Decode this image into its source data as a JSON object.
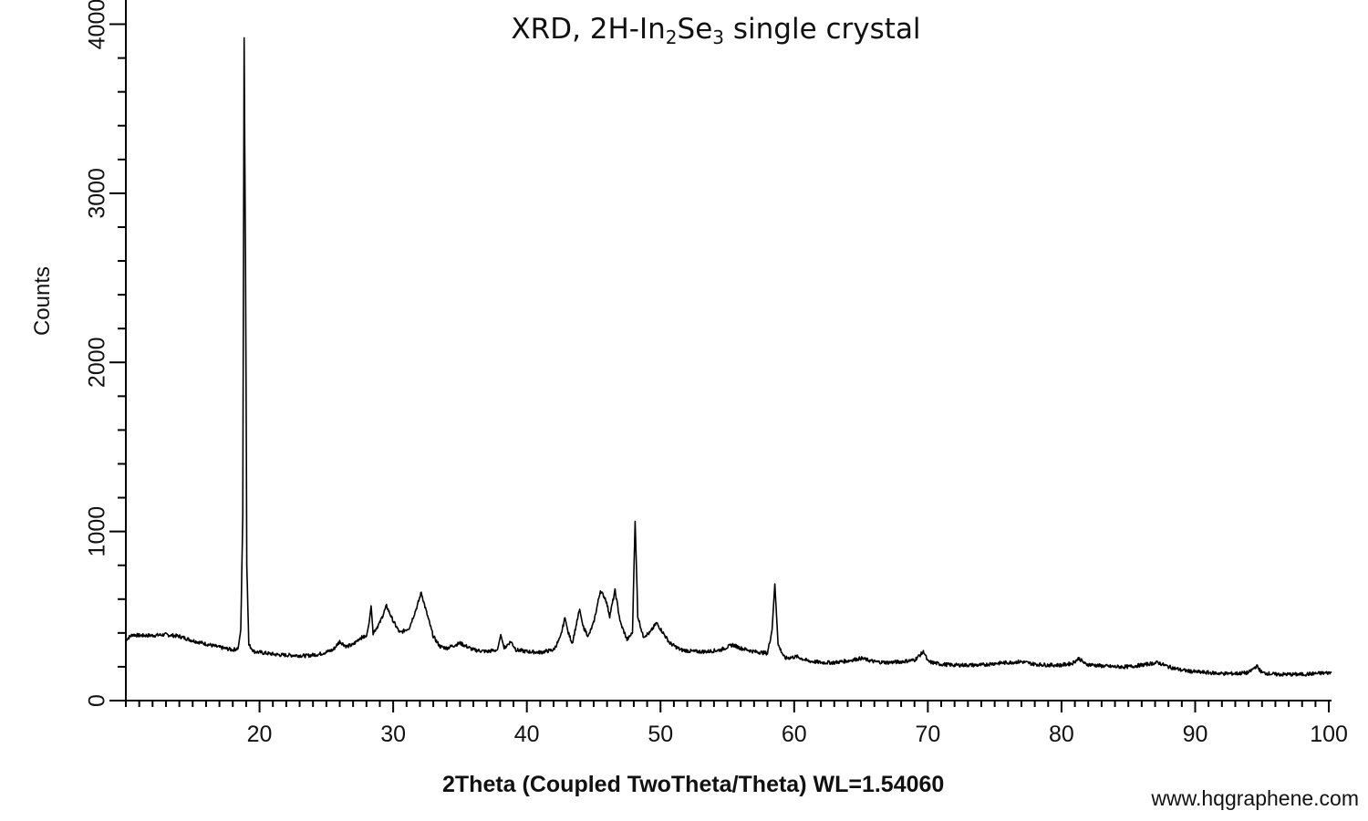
{
  "chart_data": {
    "type": "line",
    "title_parts": {
      "pre": "XRD, 2H-In",
      "sub1": "2",
      "mid": "Se",
      "sub2": "3",
      "post": " single crystal"
    },
    "xlabel": "2Theta (Coupled TwoTheta/Theta) WL=1.54060",
    "ylabel": "Counts",
    "xlim": [
      10,
      100.2
    ],
    "ylim": [
      0,
      4100
    ],
    "x_ticks": [
      20,
      30,
      40,
      50,
      60,
      70,
      80,
      90,
      100
    ],
    "y_ticks": [
      0,
      1000,
      2000,
      3000,
      4000
    ],
    "grid": false,
    "line_color": "#000000",
    "series": [
      {
        "points": [
          [
            10.0,
            360
          ],
          [
            10.5,
            390
          ],
          [
            11.0,
            385
          ],
          [
            12.0,
            385
          ],
          [
            13.0,
            390
          ],
          [
            14.0,
            380
          ],
          [
            15.0,
            355
          ],
          [
            16.0,
            335
          ],
          [
            17.0,
            315
          ],
          [
            18.0,
            300
          ],
          [
            18.4,
            310
          ],
          [
            18.6,
            420
          ],
          [
            18.75,
            1100
          ],
          [
            18.85,
            3920
          ],
          [
            18.95,
            2600
          ],
          [
            19.05,
            800
          ],
          [
            19.2,
            330
          ],
          [
            19.6,
            290
          ],
          [
            20.5,
            280
          ],
          [
            21.5,
            270
          ],
          [
            22.5,
            268
          ],
          [
            23.5,
            265
          ],
          [
            24.5,
            275
          ],
          [
            25.5,
            300
          ],
          [
            26.0,
            350
          ],
          [
            26.5,
            320
          ],
          [
            27.0,
            330
          ],
          [
            27.5,
            370
          ],
          [
            28.0,
            380
          ],
          [
            28.2,
            460
          ],
          [
            28.35,
            560
          ],
          [
            28.5,
            400
          ],
          [
            29.0,
            460
          ],
          [
            29.5,
            560
          ],
          [
            30.0,
            470
          ],
          [
            30.5,
            400
          ],
          [
            31.2,
            430
          ],
          [
            31.8,
            560
          ],
          [
            32.1,
            640
          ],
          [
            32.5,
            520
          ],
          [
            33.0,
            380
          ],
          [
            33.5,
            320
          ],
          [
            34.0,
            310
          ],
          [
            35.0,
            340
          ],
          [
            36.0,
            300
          ],
          [
            37.0,
            290
          ],
          [
            37.8,
            300
          ],
          [
            38.05,
            390
          ],
          [
            38.3,
            310
          ],
          [
            38.8,
            350
          ],
          [
            39.2,
            300
          ],
          [
            40.0,
            290
          ],
          [
            41.0,
            285
          ],
          [
            42.0,
            300
          ],
          [
            42.5,
            370
          ],
          [
            42.85,
            490
          ],
          [
            43.1,
            400
          ],
          [
            43.4,
            340
          ],
          [
            43.95,
            540
          ],
          [
            44.2,
            440
          ],
          [
            44.6,
            380
          ],
          [
            45.0,
            460
          ],
          [
            45.5,
            650
          ],
          [
            45.9,
            600
          ],
          [
            46.2,
            500
          ],
          [
            46.6,
            650
          ],
          [
            47.0,
            460
          ],
          [
            47.5,
            360
          ],
          [
            47.9,
            400
          ],
          [
            48.1,
            1060
          ],
          [
            48.3,
            500
          ],
          [
            48.7,
            380
          ],
          [
            49.2,
            400
          ],
          [
            49.7,
            460
          ],
          [
            50.2,
            400
          ],
          [
            50.7,
            340
          ],
          [
            51.5,
            300
          ],
          [
            52.5,
            290
          ],
          [
            53.5,
            290
          ],
          [
            54.5,
            300
          ],
          [
            55.4,
            330
          ],
          [
            56.0,
            310
          ],
          [
            57.0,
            290
          ],
          [
            58.0,
            280
          ],
          [
            58.35,
            420
          ],
          [
            58.55,
            690
          ],
          [
            58.8,
            330
          ],
          [
            59.3,
            250
          ],
          [
            60.2,
            260
          ],
          [
            61.0,
            235
          ],
          [
            62.0,
            225
          ],
          [
            63.0,
            225
          ],
          [
            64.0,
            235
          ],
          [
            65.0,
            250
          ],
          [
            66.0,
            230
          ],
          [
            67.0,
            225
          ],
          [
            68.0,
            230
          ],
          [
            69.0,
            240
          ],
          [
            69.7,
            290
          ],
          [
            70.0,
            230
          ],
          [
            71.0,
            215
          ],
          [
            72.0,
            210
          ],
          [
            73.0,
            210
          ],
          [
            74.0,
            210
          ],
          [
            75.0,
            220
          ],
          [
            76.0,
            225
          ],
          [
            77.0,
            230
          ],
          [
            78.0,
            215
          ],
          [
            79.0,
            210
          ],
          [
            80.0,
            210
          ],
          [
            80.8,
            220
          ],
          [
            81.3,
            250
          ],
          [
            81.8,
            215
          ],
          [
            83.0,
            205
          ],
          [
            84.0,
            200
          ],
          [
            85.0,
            200
          ],
          [
            86.0,
            210
          ],
          [
            87.2,
            225
          ],
          [
            88.0,
            200
          ],
          [
            89.0,
            180
          ],
          [
            90.0,
            170
          ],
          [
            91.0,
            165
          ],
          [
            92.0,
            160
          ],
          [
            93.0,
            160
          ],
          [
            94.0,
            165
          ],
          [
            94.6,
            205
          ],
          [
            95.0,
            165
          ],
          [
            96.0,
            155
          ],
          [
            97.0,
            155
          ],
          [
            98.0,
            155
          ],
          [
            99.0,
            160
          ],
          [
            100.2,
            165
          ]
        ]
      }
    ]
  },
  "watermark": "www.hqgraphene.com"
}
